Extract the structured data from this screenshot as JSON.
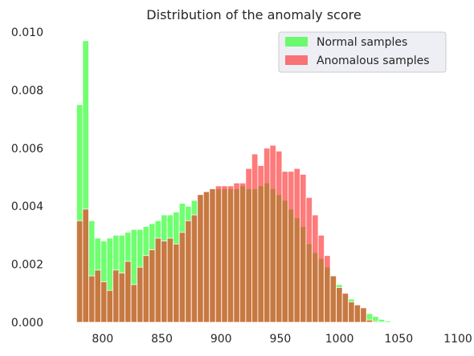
{
  "chart_data": {
    "type": "bar",
    "title": "Distribution of the anomaly score",
    "xlabel": "",
    "ylabel": "",
    "xlim": [
      773,
      1100
    ],
    "ylim": [
      0,
      0.01
    ],
    "x_ticks": [
      "800",
      "850",
      "900",
      "950",
      "1000",
      "1050",
      "1100"
    ],
    "y_ticks": [
      "0.000",
      "0.002",
      "0.004",
      "0.006",
      "0.008",
      "0.010"
    ],
    "grid": false,
    "legend_position": "top-right",
    "bin_start": 778,
    "bin_width": 5.1,
    "series": [
      {
        "name": "Normal samples",
        "color": "#33ff33",
        "alpha": 0.7,
        "values": [
          0.0075,
          0.0097,
          0.0035,
          0.0029,
          0.0028,
          0.0029,
          0.003,
          0.003,
          0.0031,
          0.0032,
          0.0032,
          0.0033,
          0.0034,
          0.0035,
          0.0037,
          0.0037,
          0.0038,
          0.0041,
          0.004,
          0.0042,
          0.0044,
          0.0045,
          0.0046,
          0.0046,
          0.0046,
          0.0046,
          0.0046,
          0.0047,
          0.0046,
          0.0046,
          0.0047,
          0.0048,
          0.0046,
          0.0044,
          0.0042,
          0.0039,
          0.0036,
          0.0033,
          0.0027,
          0.0024,
          0.0022,
          0.0019,
          0.0016,
          0.0013,
          0.001,
          0.0008,
          0.0006,
          0.0005,
          0.0003,
          0.0002,
          0.0001,
          5e-05
        ]
      },
      {
        "name": "Anomalous samples",
        "color": "#ff2222",
        "alpha": 0.6,
        "values": [
          0.0035,
          0.0039,
          0.0016,
          0.0018,
          0.0014,
          0.0011,
          0.0018,
          0.0017,
          0.0021,
          0.0013,
          0.0019,
          0.0023,
          0.0025,
          0.0029,
          0.0028,
          0.0029,
          0.0027,
          0.0031,
          0.0035,
          0.0037,
          0.0044,
          0.0045,
          0.0046,
          0.0047,
          0.0047,
          0.0047,
          0.0048,
          0.0048,
          0.0053,
          0.0058,
          0.0054,
          0.006,
          0.0061,
          0.0059,
          0.0052,
          0.0052,
          0.0053,
          0.0051,
          0.0043,
          0.0037,
          0.003,
          0.0023,
          0.0016,
          0.0012,
          0.001,
          0.0007,
          0.0006,
          0.0005,
          8e-05,
          3e-05,
          1e-05,
          0.0
        ]
      }
    ]
  }
}
